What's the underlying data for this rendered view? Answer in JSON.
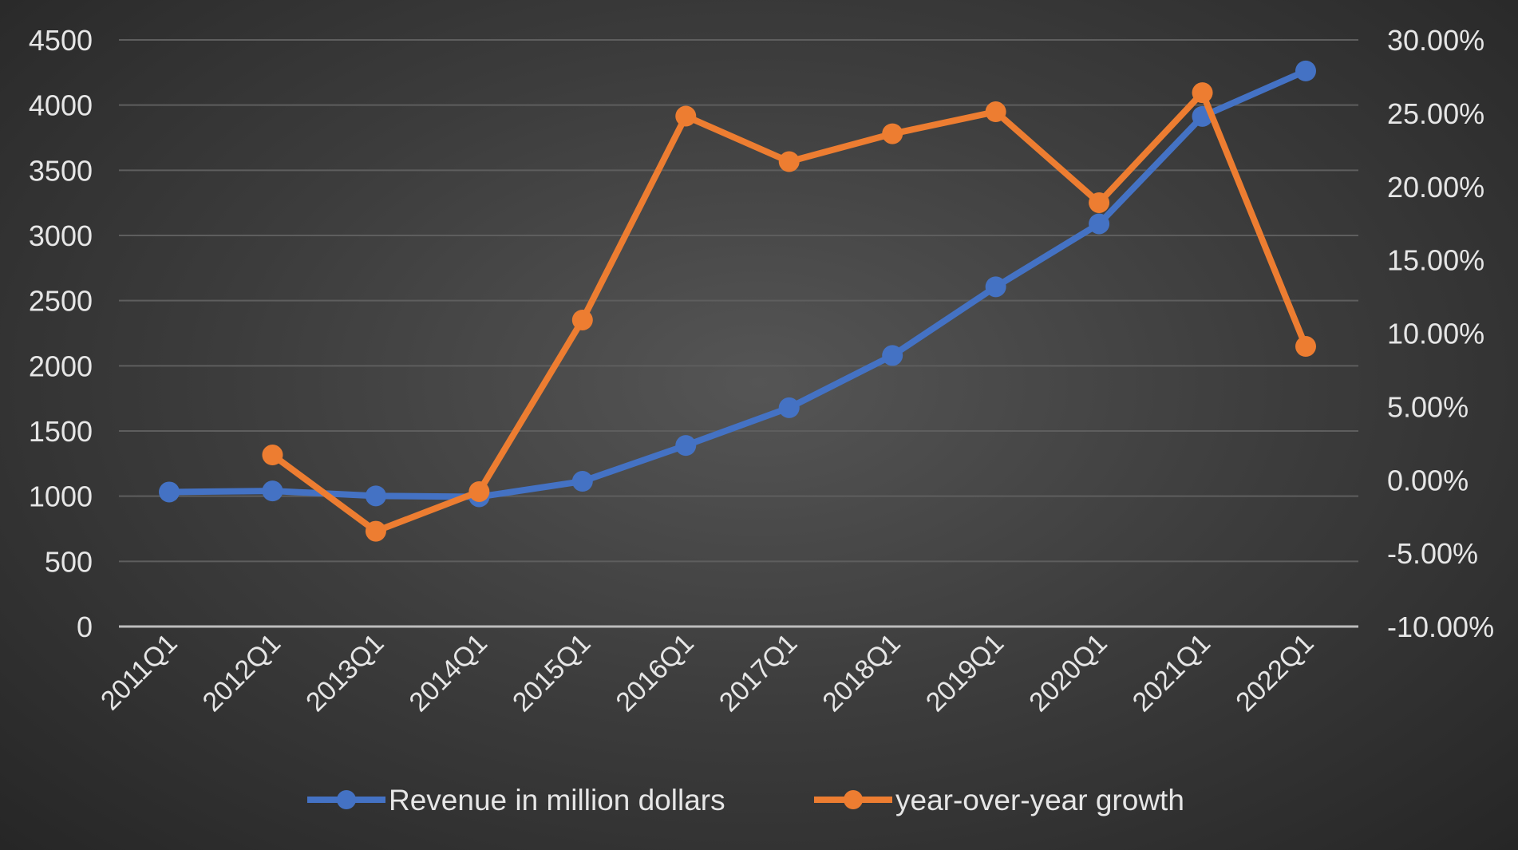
{
  "chart_data": {
    "type": "line",
    "categories": [
      "2011Q1",
      "2012Q1",
      "2013Q1",
      "2014Q1",
      "2015Q1",
      "2016Q1",
      "2017Q1",
      "2018Q1",
      "2019Q1",
      "2020Q1",
      "2021Q1",
      "2022Q1"
    ],
    "series": [
      {
        "name": "Revenue in million dollars",
        "axis": "left",
        "color": "#4472c4",
        "values": [
          1032,
          1040,
          1002,
          995,
          1114,
          1389,
          1678,
          2079,
          2606,
          3089,
          3913,
          4262
        ]
      },
      {
        "name": "year-over-year growth",
        "axis": "right",
        "color": "#ed7d31",
        "values": [
          null,
          1.7,
          -3.5,
          -0.8,
          10.9,
          24.8,
          21.7,
          23.6,
          25.1,
          18.9,
          26.4,
          9.1
        ]
      }
    ],
    "left_axis": {
      "range": [
        0,
        4500
      ],
      "ticks": [
        "0",
        "500",
        "1000",
        "1500",
        "2000",
        "2500",
        "3000",
        "3500",
        "4000",
        "4500"
      ]
    },
    "right_axis": {
      "range": [
        -10,
        30
      ],
      "ticks": [
        "-10.00%",
        "-5.00%",
        "0.00%",
        "5.00%",
        "10.00%",
        "15.00%",
        "20.00%",
        "25.00%",
        "30.00%"
      ]
    },
    "grid": true,
    "legend": "bottom"
  }
}
